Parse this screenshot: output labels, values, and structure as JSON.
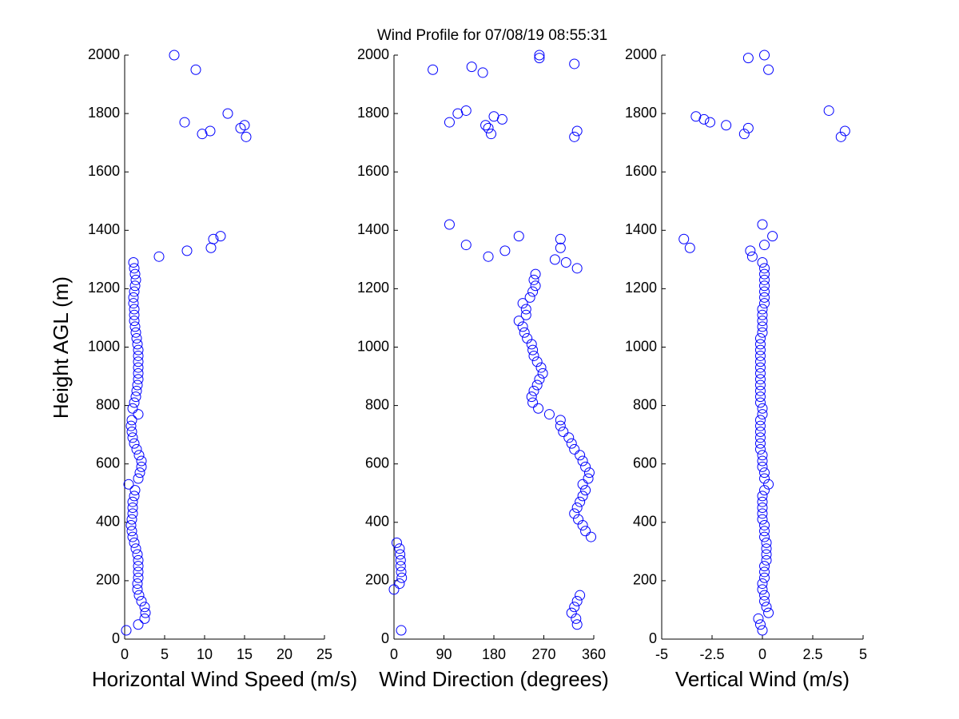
{
  "chart_data": [
    {
      "type": "scatter",
      "title": "Wind Profile for  07/08/19 08:55:31",
      "xlabel": "Horizontal Wind Speed (m/s)",
      "ylabel": "Height AGL (m)",
      "color": "#0000ff",
      "xlim": [
        0,
        25
      ],
      "xticks": [
        0,
        5,
        10,
        15,
        20,
        25
      ],
      "ylim": [
        0,
        2000
      ],
      "yticks": [
        0,
        200,
        400,
        600,
        800,
        1000,
        1200,
        1400,
        1600,
        1800,
        2000
      ],
      "x": [
        0.2,
        1.7,
        2.5,
        2.6,
        2.5,
        2.1,
        1.8,
        1.6,
        1.6,
        1.7,
        1.7,
        1.7,
        1.7,
        1.6,
        1.4,
        1.2,
        1,
        0.9,
        0.8,
        0.9,
        1,
        1,
        1,
        1.2,
        1.3,
        0.5,
        1.7,
        1.9,
        2.1,
        2.1,
        1.8,
        1.5,
        1.2,
        1,
        0.9,
        0.8,
        0.9,
        1.7,
        1,
        1.2,
        1.4,
        1.5,
        1.6,
        1.7,
        1.7,
        1.7,
        1.7,
        1.7,
        1.7,
        1.6,
        1.5,
        1.4,
        1.3,
        1.2,
        1.2,
        1.2,
        1.1,
        1.1,
        1.2,
        1.3,
        1.4,
        1.3,
        1.2,
        1.1,
        4.3,
        7.8,
        10.8,
        11.1,
        12,
        15.2,
        9.7,
        10.7,
        14.5,
        15,
        7.5,
        12.9,
        8.9,
        6.2
      ],
      "y": [
        30,
        50,
        70,
        90,
        110,
        130,
        150,
        170,
        190,
        210,
        230,
        250,
        270,
        290,
        310,
        330,
        350,
        370,
        390,
        410,
        430,
        450,
        470,
        490,
        510,
        530,
        550,
        570,
        590,
        610,
        630,
        650,
        670,
        690,
        710,
        730,
        750,
        770,
        790,
        810,
        830,
        850,
        870,
        890,
        910,
        930,
        950,
        970,
        990,
        1010,
        1030,
        1050,
        1070,
        1090,
        1110,
        1130,
        1150,
        1170,
        1190,
        1210,
        1230,
        1250,
        1270,
        1290,
        1310,
        1330,
        1340,
        1370,
        1380,
        1720,
        1730,
        1740,
        1750,
        1760,
        1770,
        1800,
        1950,
        2000
      ]
    },
    {
      "type": "scatter",
      "xlabel": "Wind Direction (degrees)",
      "color": "#0000ff",
      "xlim": [
        0,
        360
      ],
      "xticks": [
        0,
        90,
        180,
        270,
        360
      ],
      "ylim": [
        0,
        2000
      ],
      "yticks": [
        0,
        200,
        400,
        600,
        800,
        1000,
        1200,
        1400,
        1600,
        1800,
        2000
      ],
      "x": [
        13,
        330,
        328,
        320,
        325,
        330,
        335,
        0,
        10,
        14,
        13,
        12,
        12,
        11,
        10,
        5,
        355,
        345,
        340,
        332,
        325,
        330,
        335,
        340,
        345,
        340,
        350,
        352,
        345,
        340,
        335,
        325,
        320,
        315,
        305,
        300,
        300,
        280,
        260,
        250,
        248,
        252,
        258,
        262,
        268,
        265,
        258,
        252,
        250,
        248,
        240,
        235,
        232,
        225,
        238,
        238,
        232,
        245,
        250,
        255,
        252,
        255,
        330,
        310,
        290,
        170,
        200,
        300,
        130,
        300,
        225,
        100,
        325,
        175,
        330,
        170,
        165,
        100,
        195,
        180,
        115,
        130,
        160,
        70,
        140,
        325,
        262,
        262
      ],
      "y": [
        30,
        50,
        70,
        90,
        110,
        130,
        150,
        170,
        190,
        210,
        230,
        250,
        270,
        290,
        310,
        330,
        350,
        370,
        390,
        410,
        430,
        450,
        470,
        490,
        510,
        530,
        550,
        570,
        590,
        610,
        630,
        650,
        670,
        690,
        710,
        730,
        750,
        770,
        790,
        810,
        830,
        850,
        870,
        890,
        910,
        930,
        950,
        970,
        990,
        1010,
        1030,
        1050,
        1070,
        1090,
        1110,
        1130,
        1150,
        1170,
        1190,
        1210,
        1230,
        1250,
        1270,
        1290,
        1300,
        1310,
        1330,
        1340,
        1350,
        1370,
        1380,
        1420,
        1720,
        1730,
        1740,
        1750,
        1760,
        1770,
        1780,
        1790,
        1800,
        1810,
        1940,
        1950,
        1960,
        1970,
        1990,
        2000
      ]
    },
    {
      "type": "scatter",
      "xlabel": "Vertical Wind (m/s)",
      "color": "#0000ff",
      "xlim": [
        -5,
        5
      ],
      "xticks": [
        -5,
        -2.5,
        0,
        2.5,
        5
      ],
      "ylim": [
        0,
        2000
      ],
      "yticks": [
        0,
        200,
        400,
        600,
        800,
        1000,
        1200,
        1400,
        1600,
        1800,
        2000
      ],
      "x": [
        0,
        -0.1,
        -0.2,
        0.3,
        0.2,
        0.1,
        0.1,
        0,
        0,
        0.1,
        0.1,
        0.1,
        0.2,
        0.2,
        0.2,
        0.2,
        0.1,
        0.1,
        0.1,
        0,
        0,
        0,
        0,
        0,
        0.1,
        0.3,
        0.1,
        0.1,
        0,
        0,
        0,
        -0.1,
        -0.1,
        -0.1,
        -0.1,
        -0.1,
        -0.1,
        0,
        0,
        -0.1,
        -0.1,
        -0.1,
        -0.1,
        -0.1,
        -0.1,
        -0.1,
        -0.1,
        -0.1,
        -0.1,
        -0.1,
        -0.1,
        0,
        0,
        0,
        0,
        0,
        0.1,
        0.1,
        0.1,
        0.1,
        0.1,
        0.1,
        0.1,
        0,
        -0.5,
        -0.6,
        -3.6,
        0.1,
        -3.9,
        0.5,
        0,
        3.9,
        -0.9,
        4.1,
        -0.7,
        -1.8,
        -2.6,
        -2.9,
        -3.3,
        3.3,
        0.3,
        -0.7,
        0.1
      ],
      "y": [
        30,
        50,
        70,
        90,
        110,
        130,
        150,
        170,
        190,
        210,
        230,
        250,
        270,
        290,
        310,
        330,
        350,
        370,
        390,
        410,
        430,
        450,
        470,
        490,
        510,
        530,
        550,
        570,
        590,
        610,
        630,
        650,
        670,
        690,
        710,
        730,
        750,
        770,
        790,
        810,
        830,
        850,
        870,
        890,
        910,
        930,
        950,
        970,
        990,
        1010,
        1030,
        1050,
        1070,
        1090,
        1110,
        1130,
        1150,
        1170,
        1190,
        1210,
        1230,
        1250,
        1270,
        1290,
        1310,
        1330,
        1340,
        1350,
        1370,
        1380,
        1420,
        1720,
        1730,
        1740,
        1750,
        1760,
        1770,
        1780,
        1790,
        1810,
        1950,
        1990,
        2000
      ]
    }
  ]
}
